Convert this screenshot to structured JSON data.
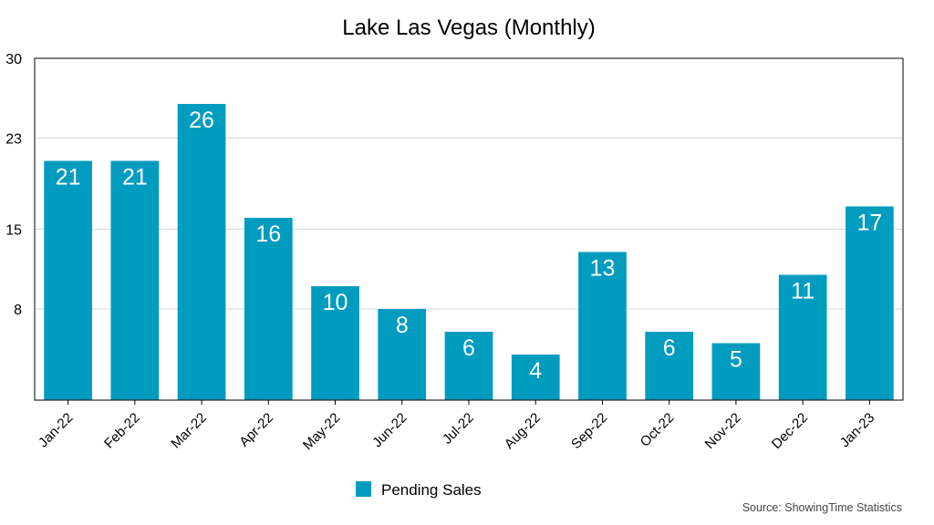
{
  "chart_data": {
    "type": "bar",
    "title": "Lake Las Vegas (Monthly)",
    "categories": [
      "Jan-22",
      "Feb-22",
      "Mar-22",
      "Apr-22",
      "May-22",
      "Jun-22",
      "Jul-22",
      "Aug-22",
      "Sep-22",
      "Oct-22",
      "Nov-22",
      "Dec-22",
      "Jan-23"
    ],
    "series": [
      {
        "name": "Pending Sales",
        "color": "#009cc0",
        "values": [
          21,
          21,
          26,
          16,
          10,
          8,
          6,
          4,
          13,
          6,
          5,
          11,
          17
        ]
      }
    ],
    "ylim": [
      0,
      30
    ],
    "yticks": [
      8,
      15,
      23,
      30
    ],
    "grid": true,
    "legend": "bottom-center",
    "xlabel": "",
    "ylabel": "",
    "source": "Source: ShowingTime Statistics"
  }
}
